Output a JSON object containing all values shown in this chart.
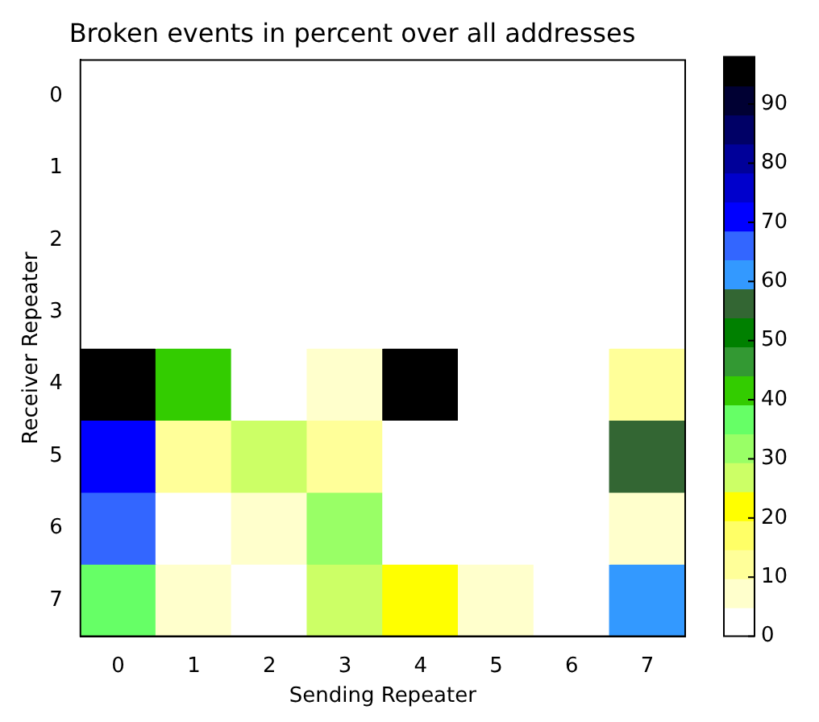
{
  "chart_data": {
    "type": "heatmap",
    "title": "Broken events in percent over all addresses",
    "xlabel": "Sending Repeater",
    "ylabel": "Receiver Repeater",
    "categories": [
      "0",
      "1",
      "2",
      "3",
      "4",
      "5",
      "6",
      "7"
    ],
    "y_categories": [
      "0",
      "1",
      "2",
      "3",
      "4",
      "5",
      "6",
      "7"
    ],
    "cells": [
      [
        0,
        0,
        0,
        0,
        0,
        0,
        0,
        0
      ],
      [
        0,
        0,
        0,
        0,
        0,
        0,
        0,
        0
      ],
      [
        0,
        0,
        0,
        0,
        0,
        0,
        0,
        0
      ],
      [
        0,
        0,
        0,
        0,
        0,
        0,
        0,
        0
      ],
      [
        98,
        42,
        0,
        7,
        98,
        0,
        0,
        12
      ],
      [
        71,
        12,
        27,
        12,
        1,
        0,
        1,
        56
      ],
      [
        66,
        1,
        7,
        32,
        0,
        0,
        0,
        7
      ],
      [
        37,
        7,
        1,
        27,
        22,
        7,
        0,
        61
      ]
    ],
    "clim": [
      0,
      98
    ],
    "cticks": [
      0,
      10,
      20,
      30,
      40,
      50,
      60,
      70,
      80,
      90
    ],
    "grid": false
  }
}
